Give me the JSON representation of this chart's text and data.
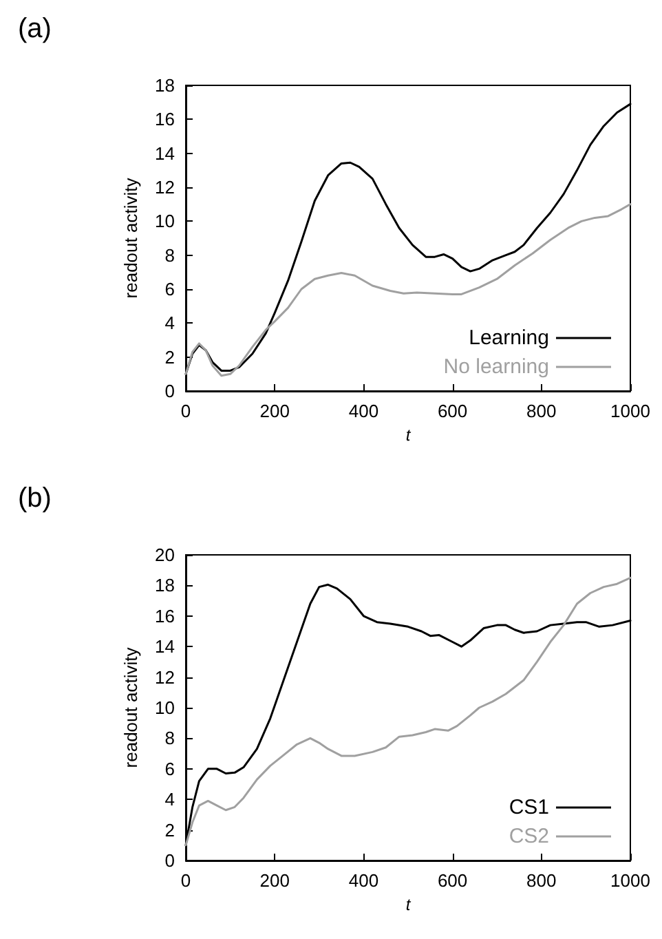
{
  "chart_data": [
    {
      "type": "line",
      "title": "(a)",
      "xlabel": "t",
      "ylabel": "readout activity",
      "xlim": [
        0,
        1000
      ],
      "xticks": [
        0,
        200,
        400,
        600,
        800,
        1000
      ],
      "ylim": [
        0,
        18
      ],
      "yticks": [
        0,
        2,
        4,
        6,
        8,
        10,
        12,
        14,
        16,
        18
      ],
      "grid": false,
      "legend": "bottom right",
      "marker": "none",
      "line_style": "solid",
      "series": [
        {
          "name": "Learning",
          "color": "#000000",
          "x": [
            0,
            15,
            30,
            45,
            60,
            80,
            100,
            120,
            150,
            180,
            200,
            230,
            260,
            290,
            320,
            350,
            370,
            390,
            420,
            450,
            480,
            510,
            540,
            560,
            580,
            600,
            620,
            640,
            660,
            690,
            720,
            740,
            760,
            790,
            820,
            850,
            880,
            910,
            940,
            970,
            1000
          ],
          "values": [
            1.0,
            2.2,
            2.7,
            2.4,
            1.7,
            1.2,
            1.2,
            1.4,
            2.2,
            3.4,
            4.6,
            6.5,
            8.8,
            11.2,
            12.7,
            13.4,
            13.45,
            13.2,
            12.5,
            11.0,
            9.6,
            8.6,
            7.9,
            7.9,
            8.05,
            7.8,
            7.3,
            7.05,
            7.2,
            7.7,
            8.0,
            8.2,
            8.6,
            9.6,
            10.5,
            11.6,
            13.0,
            14.5,
            15.6,
            16.4,
            16.9
          ]
        },
        {
          "name": "No learning",
          "color": "#a0a0a0",
          "x": [
            0,
            15,
            30,
            45,
            60,
            80,
            100,
            120,
            150,
            180,
            200,
            230,
            260,
            290,
            320,
            350,
            380,
            420,
            460,
            490,
            520,
            560,
            600,
            620,
            660,
            700,
            740,
            780,
            820,
            860,
            890,
            920,
            950,
            980,
            1000
          ],
          "values": [
            1.0,
            2.3,
            2.8,
            2.4,
            1.5,
            0.9,
            1.0,
            1.5,
            2.6,
            3.6,
            4.1,
            4.9,
            6.0,
            6.6,
            6.8,
            6.95,
            6.8,
            6.2,
            5.9,
            5.75,
            5.8,
            5.75,
            5.7,
            5.7,
            6.1,
            6.6,
            7.4,
            8.1,
            8.9,
            9.6,
            10.0,
            10.2,
            10.3,
            10.7,
            11.0
          ]
        }
      ]
    },
    {
      "type": "line",
      "title": "(b)",
      "xlabel": "t",
      "ylabel": "readout activity",
      "xlim": [
        0,
        1000
      ],
      "xticks": [
        0,
        200,
        400,
        600,
        800,
        1000
      ],
      "ylim": [
        0,
        20
      ],
      "yticks": [
        0,
        2,
        4,
        6,
        8,
        10,
        12,
        14,
        16,
        18,
        20
      ],
      "grid": false,
      "legend": "bottom right",
      "marker": "none",
      "line_style": "solid",
      "series": [
        {
          "name": "CS1",
          "color": "#000000",
          "x": [
            0,
            15,
            30,
            50,
            70,
            90,
            110,
            130,
            160,
            190,
            220,
            250,
            280,
            300,
            320,
            340,
            370,
            400,
            430,
            460,
            500,
            530,
            550,
            570,
            600,
            620,
            640,
            670,
            700,
            720,
            740,
            760,
            790,
            820,
            850,
            880,
            900,
            930,
            960,
            1000
          ],
          "values": [
            1.0,
            3.5,
            5.2,
            6.0,
            6.0,
            5.7,
            5.75,
            6.1,
            7.3,
            9.3,
            11.8,
            14.3,
            16.8,
            17.9,
            18.05,
            17.8,
            17.1,
            16.0,
            15.6,
            15.5,
            15.3,
            15.0,
            14.7,
            14.75,
            14.3,
            14.0,
            14.4,
            15.2,
            15.4,
            15.4,
            15.1,
            14.9,
            15.0,
            15.4,
            15.5,
            15.6,
            15.6,
            15.3,
            15.4,
            15.7
          ]
        },
        {
          "name": "CS2",
          "color": "#a0a0a0",
          "x": [
            0,
            15,
            30,
            50,
            70,
            90,
            110,
            130,
            160,
            190,
            220,
            250,
            280,
            300,
            320,
            350,
            380,
            420,
            450,
            480,
            510,
            540,
            560,
            590,
            610,
            640,
            660,
            690,
            720,
            760,
            790,
            820,
            850,
            880,
            910,
            940,
            970,
            1000
          ],
          "values": [
            1.0,
            2.5,
            3.6,
            3.9,
            3.6,
            3.3,
            3.5,
            4.1,
            5.3,
            6.2,
            6.9,
            7.6,
            8.0,
            7.7,
            7.3,
            6.85,
            6.85,
            7.1,
            7.4,
            8.1,
            8.2,
            8.4,
            8.6,
            8.5,
            8.8,
            9.5,
            10.0,
            10.4,
            10.9,
            11.8,
            13.0,
            14.3,
            15.4,
            16.8,
            17.5,
            17.9,
            18.1,
            18.5
          ]
        }
      ]
    }
  ]
}
